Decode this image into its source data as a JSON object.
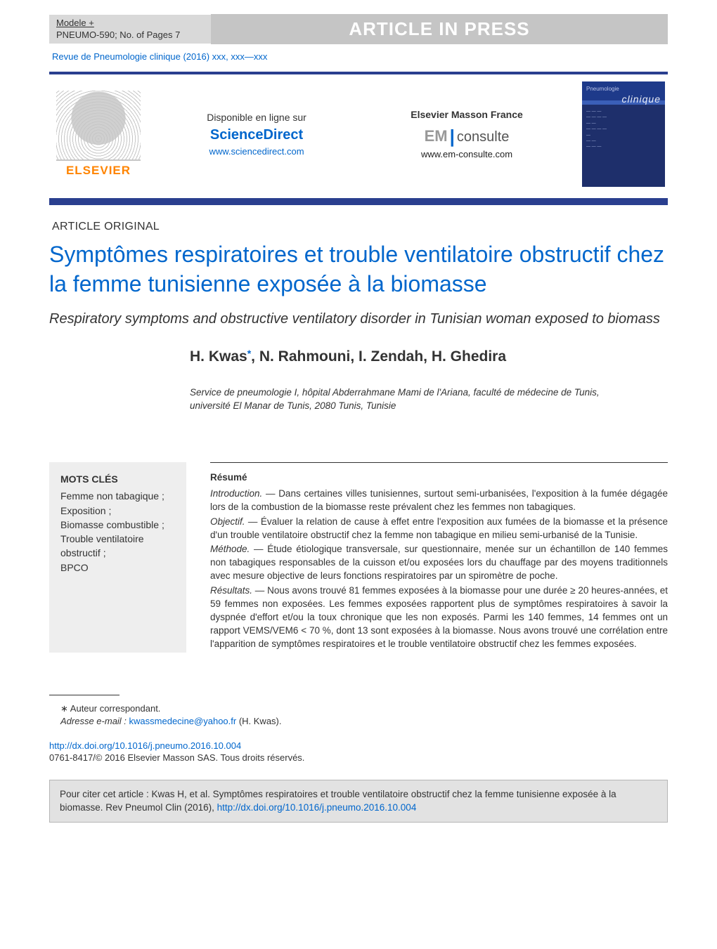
{
  "header": {
    "model_line1": "Modele +",
    "model_line2": "PNEUMO-590;   No. of Pages 7",
    "press_label": "ARTICLE IN PRESS",
    "citation": "Revue de Pneumologie clinique (2016) xxx, xxx—xxx"
  },
  "banner": {
    "elsevier": "ELSEVIER",
    "left": {
      "label": "Disponible en ligne sur",
      "brand": "ScienceDirect",
      "url": "www.sciencedirect.com"
    },
    "right": {
      "label": "Elsevier Masson France",
      "em": "EM",
      "consulte": "consulte",
      "url": "www.em-consulte.com"
    },
    "cover": {
      "pre": "Pneumologie",
      "title": "clinique"
    }
  },
  "article": {
    "section": "ARTICLE ORIGINAL",
    "title_fr": "Symptômes respiratoires et trouble ventilatoire obstructif chez la femme tunisienne exposée à la biomasse",
    "title_en": "Respiratory symptoms and obstructive ventilatory disorder in Tunisian woman exposed to biomass",
    "authors": "H. Kwas*, N. Rahmouni, I. Zendah, H. Ghedira",
    "authors_parts": {
      "a1": "H. Kwas",
      "star": "*",
      "rest": ", N. Rahmouni, I. Zendah, H. Ghedira"
    },
    "affiliation": "Service de pneumologie I, hôpital Abderrahmane Mami de l'Ariana, faculté de médecine de Tunis, université El Manar de Tunis, 2080 Tunis, Tunisie"
  },
  "keywords": {
    "head": "MOTS CLÉS",
    "items": "Femme non tabagique ;\nExposition ;\nBiomasse combustible ;\nTrouble ventilatoire obstructif ;\nBPCO"
  },
  "abstract": {
    "head": "Résumé",
    "intro_label": "Introduction. — ",
    "intro": "Dans certaines villes tunisiennes, surtout semi-urbanisées, l'exposition à la fumée dégagée lors de la combustion de la biomasse reste prévalent chez les femmes non tabagiques.",
    "obj_label": "Objectif. — ",
    "obj": "Évaluer la relation de cause à effet entre l'exposition aux fumées de la biomasse et la présence d'un trouble ventilatoire obstructif chez la femme non tabagique en milieu semi-urbanisé de la Tunisie.",
    "meth_label": "Méthode. — ",
    "meth": "Étude étiologique transversale, sur questionnaire, menée sur un échantillon de 140 femmes non tabagiques responsables de la cuisson et/ou exposées lors du chauffage par des moyens traditionnels avec mesure objective de leurs fonctions respiratoires par un spiromètre de poche.",
    "res_label": "Résultats. — ",
    "res": "Nous avons trouvé 81 femmes exposées à la biomasse pour une durée ≥ 20 heures-années, et 59 femmes non exposées. Les femmes exposées rapportent plus de symptômes respiratoires à savoir la dyspnée d'effort et/ou la toux chronique que les non exposés. Parmi les 140 femmes, 14 femmes ont un rapport VEMS/VEM6 < 70 %, dont 13 sont exposées à la biomasse. Nous avons trouvé une corrélation entre l'apparition de symptômes respiratoires et le trouble ventilatoire obstructif chez les femmes exposées."
  },
  "footer": {
    "corresp": "∗ Auteur correspondant.",
    "email_label": "Adresse e-mail : ",
    "email": "kwassmedecine@yahoo.fr",
    "email_after": " (H. Kwas).",
    "doi": "http://dx.doi.org/10.1016/j.pneumo.2016.10.004",
    "copyright": "0761-8417/© 2016 Elsevier Masson SAS. Tous droits réservés.",
    "cite_pre": "Pour citer cet article : Kwas H, et al. Symptômes respiratoires et trouble ventilatoire obstructif chez la femme tunisienne exposée à la biomasse. Rev Pneumol Clin (2016), ",
    "cite_doi": "http://dx.doi.org/10.1016/j.pneumo.2016.10.004"
  },
  "colors": {
    "link": "#0066cc",
    "brand_orange": "#ff8400",
    "bar_gray": "#c5c5c5",
    "dark_blue": "#2a3f8f"
  }
}
